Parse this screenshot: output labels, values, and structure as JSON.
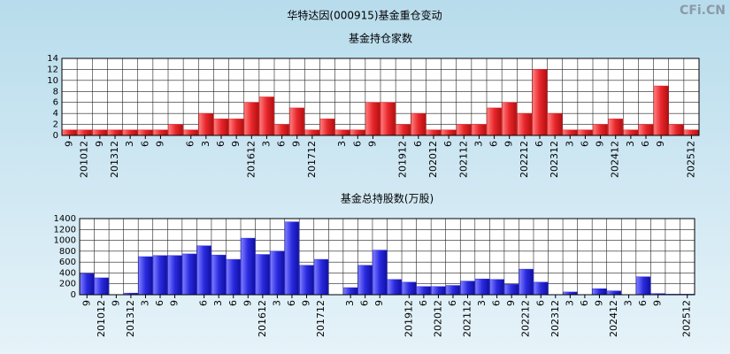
{
  "title": "华特达因(000915)基金重仓变动",
  "watermark": "CFi.CN",
  "chart_data": [
    {
      "type": "bar",
      "title": "基金持仓家数",
      "color": "#e8262b",
      "categories": [
        "9",
        "201012",
        "9",
        "201312",
        "3",
        "6",
        "9",
        null,
        "6",
        "3",
        "6",
        "9",
        "201612",
        "3",
        "6",
        "9",
        "201712",
        null,
        "3",
        "6",
        "9",
        null,
        "201912",
        "6",
        "202012",
        "6",
        "202112",
        "3",
        "6",
        "9",
        "202212",
        "6",
        "202312",
        "3",
        "6",
        "9",
        "202412",
        "3",
        "6",
        "9",
        null,
        "202512"
      ],
      "values": [
        1,
        1,
        1,
        1,
        1,
        1,
        1,
        2,
        1,
        4,
        3,
        3,
        6,
        7,
        2,
        5,
        1,
        3,
        1,
        1,
        6,
        6,
        2,
        4,
        1,
        1,
        2,
        2,
        5,
        6,
        4,
        12,
        4,
        1,
        1,
        2,
        3,
        1,
        2,
        9,
        2,
        1
      ],
      "ylim": [
        0,
        14
      ],
      "yticks": [
        0,
        2,
        4,
        6,
        8,
        10,
        12,
        14
      ],
      "grid": true
    },
    {
      "type": "bar",
      "title": "基金总持股数(万股)",
      "color": "#2a2ae0",
      "categories": [
        "9",
        "201012",
        "9",
        "201312",
        "3",
        "6",
        "9",
        null,
        "6",
        "3",
        "6",
        "9",
        "201612",
        "3",
        "6",
        "9",
        "201712",
        null,
        "3",
        "6",
        "9",
        null,
        "201912",
        "6",
        "202012",
        "6",
        "202112",
        "3",
        "6",
        "9",
        "202212",
        "6",
        "202312",
        "3",
        "6",
        "9",
        "202412",
        "3",
        "6",
        "9",
        null,
        "202512"
      ],
      "values": [
        390,
        310,
        0,
        30,
        700,
        720,
        720,
        750,
        900,
        730,
        650,
        1040,
        740,
        800,
        1340,
        540,
        650,
        0,
        130,
        540,
        820,
        280,
        230,
        150,
        150,
        170,
        250,
        290,
        280,
        190,
        470,
        230,
        0,
        50,
        0,
        110,
        70,
        0,
        330,
        20,
        10,
        10
      ],
      "ylim": [
        0,
        1400
      ],
      "yticks": [
        0,
        200,
        400,
        600,
        800,
        1000,
        1200,
        1400
      ],
      "grid": true
    }
  ]
}
